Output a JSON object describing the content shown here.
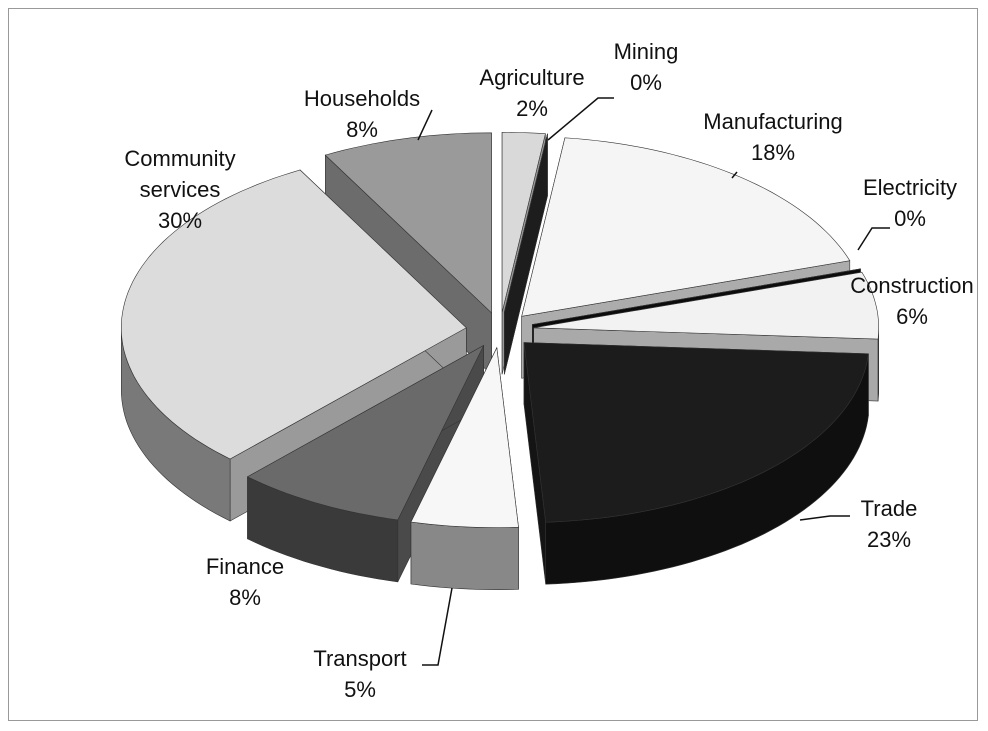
{
  "chart_data": {
    "type": "pie",
    "categories": [
      "Agriculture",
      "Mining",
      "Manufacturing",
      "Electricity",
      "Construction",
      "Trade",
      "Transport",
      "Finance",
      "Community services",
      "Households"
    ],
    "values": [
      2,
      0,
      18,
      0,
      6,
      23,
      5,
      8,
      30,
      8
    ],
    "value_labels": [
      "2%",
      "0%",
      "18%",
      "0%",
      "6%",
      "23%",
      "5%",
      "8%",
      "30%",
      "8%"
    ],
    "colors": [
      "#d9d9d9",
      "#2a2a2a",
      "#f5f5f5",
      "#111111",
      "#f2f2f2",
      "#1c1c1c",
      "#f7f7f7",
      "#6a6a6a",
      "#dcdcdc",
      "#9a9a9a"
    ]
  }
}
